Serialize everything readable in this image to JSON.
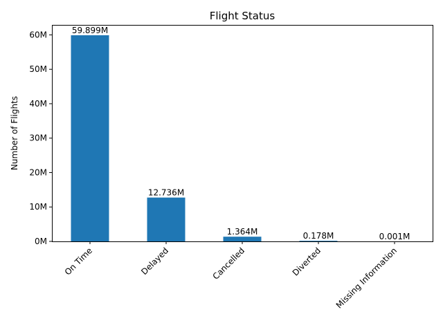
{
  "chart_data": {
    "type": "bar",
    "title": "Flight Status",
    "xlabel": "",
    "ylabel": "Number of Flights",
    "categories": [
      "On Time",
      "Delayed",
      "Cancelled",
      "Diverted",
      "Missing Information"
    ],
    "values": [
      59899000,
      12736000,
      1364000,
      178000,
      1000
    ],
    "data_labels": [
      "59.899M",
      "12.736M",
      "1.364M",
      "0.178M",
      "0.001M"
    ],
    "ylim": [
      0,
      62900000
    ],
    "yticks": [
      0,
      10000000,
      20000000,
      30000000,
      40000000,
      50000000,
      60000000
    ],
    "ytick_labels": [
      "0M",
      "10M",
      "20M",
      "30M",
      "40M",
      "50M",
      "60M"
    ],
    "bar_color": "#1f77b4",
    "grid": false,
    "legend": "none"
  }
}
